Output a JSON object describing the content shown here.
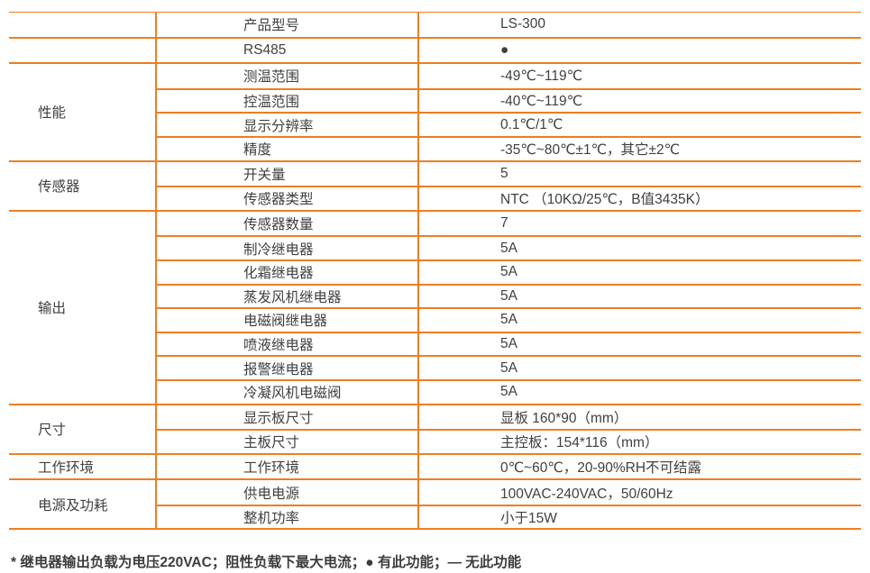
{
  "table": {
    "sections": [
      {
        "category": "",
        "rows": [
          {
            "param": "产品型号",
            "value": "LS-300"
          }
        ]
      },
      {
        "category": "",
        "rows": [
          {
            "param": "RS485",
            "value": "●"
          }
        ]
      },
      {
        "category": "性能",
        "rows": [
          {
            "param": "测温范围",
            "value": "-49℃~119℃"
          },
          {
            "param": "控温范围",
            "value": "-40℃~119℃"
          },
          {
            "param": "显示分辨率",
            "value": "0.1℃/1℃"
          },
          {
            "param": "精度",
            "value": "-35℃~80℃±1℃，其它±2℃"
          }
        ]
      },
      {
        "category": "传感器",
        "rows": [
          {
            "param": "开关量",
            "value": "5"
          },
          {
            "param": "传感器类型",
            "value": "NTC （10KΩ/25℃，B值3435K）"
          }
        ]
      },
      {
        "category": "输出",
        "rows": [
          {
            "param": "传感器数量",
            "value": "7"
          },
          {
            "param": "制冷继电器",
            "value": "5A"
          },
          {
            "param": "化霜继电器",
            "value": "5A"
          },
          {
            "param": "蒸发风机继电器",
            "value": "5A"
          },
          {
            "param": "电磁阀继电器",
            "value": "5A"
          },
          {
            "param": "喷液继电器",
            "value": "5A"
          },
          {
            "param": "报警继电器",
            "value": "5A"
          },
          {
            "param": "冷凝风机电磁阀",
            "value": "5A"
          }
        ]
      },
      {
        "category": "尺寸",
        "rows": [
          {
            "param": "显示板尺寸",
            "value": "显板 160*90（mm）"
          },
          {
            "param": "主板尺寸",
            "value": "主控板：154*116（mm）"
          }
        ]
      },
      {
        "category": "工作环境",
        "rows": [
          {
            "param": "工作环境",
            "value": "0℃~60℃，20-90%RH不可结露"
          }
        ]
      },
      {
        "category": "电源及功耗",
        "rows": [
          {
            "param": "供电电源",
            "value": "100VAC-240VAC，50/60Hz"
          },
          {
            "param": "整机功率",
            "value": "小于15W"
          }
        ]
      }
    ]
  },
  "footnote": "* 继电器输出负载为电压220VAC；阻性负载下最大电流；● 有此功能；— 无此功能",
  "colors": {
    "accent": "#EE7E23",
    "text": "#404040"
  }
}
